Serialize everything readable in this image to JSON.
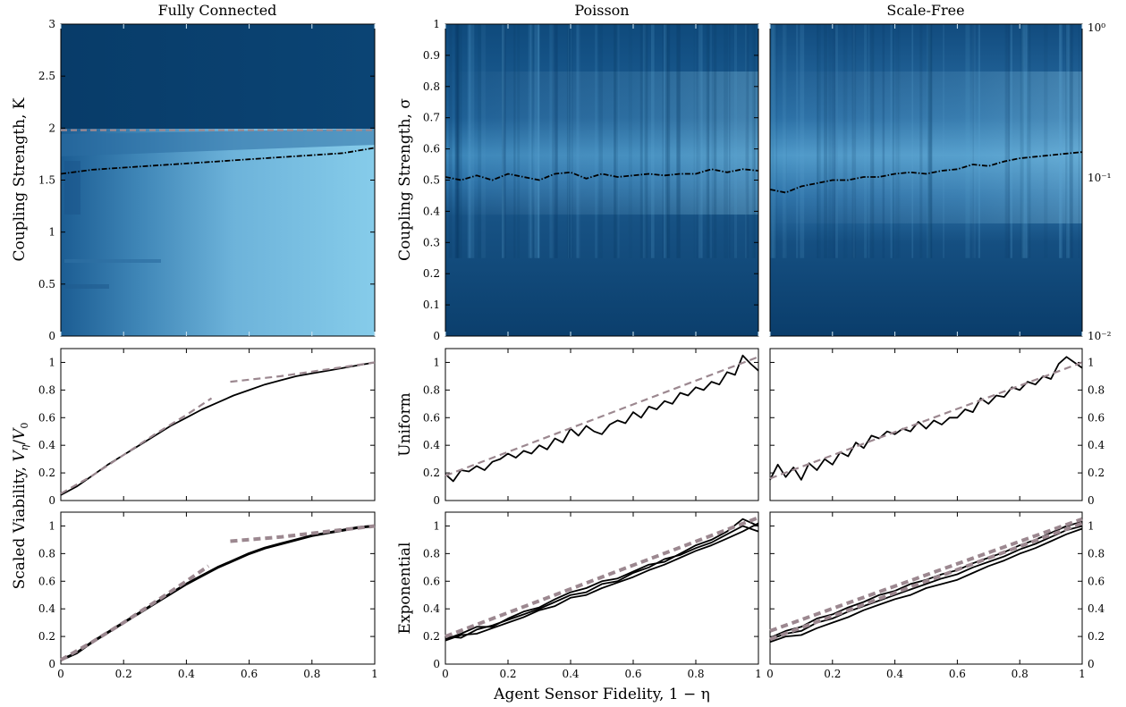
{
  "figure": {
    "x_axis_label": "Agent Sensor Fidelity, 1 − η",
    "colorbar_labels": {
      "top": "10⁰",
      "middle": "10⁻¹",
      "bottom": "10⁻²"
    },
    "colors": {
      "heat_dark": "#0a3f6e",
      "heat_light": "#87cde8",
      "fit_line": "#9c8890",
      "data_line": "#000000"
    }
  },
  "chart_data": [
    {
      "type": "heatmap",
      "id": "heat-fc",
      "title": "Fully Connected",
      "ylabel": "Coupling Strength, K",
      "xlim": [
        0,
        1
      ],
      "ylim": [
        0,
        3
      ],
      "yticks": [
        0,
        0.5,
        1,
        1.5,
        2,
        2.5,
        3
      ],
      "yticklabels": [
        "0",
        "0.5",
        "1",
        "1.5",
        "2",
        "2.5",
        "3"
      ],
      "critical_line": {
        "style": "dash-dot",
        "x": [
          0,
          0.1,
          0.2,
          0.3,
          0.4,
          0.5,
          0.6,
          0.7,
          0.8,
          0.9,
          1.0
        ],
        "y": [
          1.56,
          1.6,
          1.62,
          1.64,
          1.66,
          1.68,
          1.7,
          1.72,
          1.74,
          1.76,
          1.81
        ]
      },
      "reference_line": {
        "style": "dashed",
        "y": 1.98
      }
    },
    {
      "type": "heatmap",
      "id": "heat-poisson",
      "title": "Poisson",
      "ylabel": "Coupling Strength, σ",
      "xlim": [
        0,
        1
      ],
      "ylim": [
        0,
        1
      ],
      "yticks": [
        0,
        0.1,
        0.2,
        0.3,
        0.4,
        0.5,
        0.6,
        0.7,
        0.8,
        0.9,
        1
      ],
      "yticklabels": [
        "0",
        "0.1",
        "0.2",
        "0.3",
        "0.4",
        "0.5",
        "0.6",
        "0.7",
        "0.8",
        "0.9",
        "1"
      ],
      "critical_line": {
        "style": "dash-dot",
        "x": [
          0,
          0.05,
          0.1,
          0.15,
          0.2,
          0.25,
          0.3,
          0.35,
          0.4,
          0.45,
          0.5,
          0.55,
          0.6,
          0.65,
          0.7,
          0.75,
          0.8,
          0.85,
          0.9,
          0.95,
          1.0
        ],
        "y": [
          0.51,
          0.5,
          0.515,
          0.5,
          0.52,
          0.51,
          0.5,
          0.52,
          0.525,
          0.505,
          0.52,
          0.51,
          0.515,
          0.52,
          0.515,
          0.52,
          0.52,
          0.535,
          0.525,
          0.535,
          0.53
        ]
      }
    },
    {
      "type": "heatmap",
      "id": "heat-sf",
      "title": "Scale-Free",
      "xlim": [
        0,
        1
      ],
      "ylim": [
        0,
        1
      ],
      "colorscale": "log",
      "colorbar_range": [
        0.01,
        1
      ],
      "critical_line": {
        "style": "dash-dot",
        "x": [
          0,
          0.05,
          0.1,
          0.15,
          0.2,
          0.25,
          0.3,
          0.35,
          0.4,
          0.45,
          0.5,
          0.55,
          0.6,
          0.65,
          0.7,
          0.75,
          0.8,
          0.85,
          0.9,
          0.95,
          1.0
        ],
        "y": [
          0.47,
          0.46,
          0.48,
          0.49,
          0.5,
          0.5,
          0.51,
          0.51,
          0.52,
          0.525,
          0.52,
          0.53,
          0.535,
          0.55,
          0.545,
          0.56,
          0.57,
          0.575,
          0.58,
          0.585,
          0.59
        ]
      }
    },
    {
      "type": "line",
      "id": "line-fc-uniform",
      "xlim": [
        0,
        1
      ],
      "ylim": [
        0,
        1.1
      ],
      "xticks": [
        0,
        0.2,
        0.4,
        0.6,
        0.8,
        1
      ],
      "yticks": [
        0,
        0.2,
        0.4,
        0.6,
        0.8,
        1
      ],
      "yticklabels": [
        "0",
        "0.2",
        "0.4",
        "0.6",
        "0.8",
        "1"
      ],
      "tick_side": "left",
      "series": [
        {
          "style": "solid",
          "x": [
            0,
            0.05,
            0.1,
            0.15,
            0.2,
            0.25,
            0.3,
            0.35,
            0.4,
            0.45,
            0.5,
            0.55,
            0.6,
            0.65,
            0.7,
            0.75,
            0.8,
            0.85,
            0.9,
            0.95,
            1.0
          ],
          "y": [
            0.04,
            0.1,
            0.18,
            0.26,
            0.33,
            0.4,
            0.47,
            0.54,
            0.6,
            0.66,
            0.71,
            0.76,
            0.8,
            0.84,
            0.87,
            0.9,
            0.92,
            0.94,
            0.96,
            0.98,
            1.0
          ]
        },
        {
          "style": "dashed",
          "x": [
            0,
            0.1,
            0.2,
            0.3,
            0.4,
            0.48
          ],
          "y": [
            0.05,
            0.18,
            0.33,
            0.48,
            0.62,
            0.74
          ]
        },
        {
          "style": "dashed",
          "x": [
            0.54,
            0.7,
            0.85,
            1.0
          ],
          "y": [
            0.86,
            0.9,
            0.95,
            1.0
          ]
        }
      ]
    },
    {
      "type": "line",
      "id": "line-poisson-uniform",
      "ylabel": "Uniform",
      "xlim": [
        0,
        1
      ],
      "ylim": [
        0,
        1.1
      ],
      "xticks": [
        0,
        0.2,
        0.4,
        0.6,
        0.8,
        1
      ],
      "yticks": [
        0,
        0.2,
        0.4,
        0.6,
        0.8,
        1
      ],
      "yticklabels": [
        "0",
        "0.2",
        "0.4",
        "0.6",
        "0.8",
        "1"
      ],
      "tick_side": "left",
      "series": [
        {
          "style": "solid",
          "x": [
            0,
            0.025,
            0.05,
            0.075,
            0.1,
            0.125,
            0.15,
            0.175,
            0.2,
            0.225,
            0.25,
            0.275,
            0.3,
            0.325,
            0.35,
            0.375,
            0.4,
            0.425,
            0.45,
            0.475,
            0.5,
            0.525,
            0.55,
            0.575,
            0.6,
            0.625,
            0.65,
            0.675,
            0.7,
            0.725,
            0.75,
            0.775,
            0.8,
            0.825,
            0.85,
            0.875,
            0.9,
            0.925,
            0.95,
            0.975,
            1.0
          ],
          "y": [
            0.19,
            0.14,
            0.22,
            0.21,
            0.25,
            0.22,
            0.28,
            0.3,
            0.34,
            0.31,
            0.36,
            0.34,
            0.4,
            0.37,
            0.45,
            0.42,
            0.52,
            0.47,
            0.54,
            0.5,
            0.48,
            0.55,
            0.58,
            0.56,
            0.64,
            0.6,
            0.68,
            0.66,
            0.72,
            0.7,
            0.78,
            0.76,
            0.82,
            0.8,
            0.86,
            0.84,
            0.93,
            0.91,
            1.05,
            0.99,
            0.94
          ]
        },
        {
          "style": "dashed",
          "x": [
            0,
            1
          ],
          "y": [
            0.18,
            1.04
          ]
        }
      ]
    },
    {
      "type": "line",
      "id": "line-sf-uniform",
      "xlim": [
        0,
        1
      ],
      "ylim": [
        0,
        1.1
      ],
      "xticks": [
        0,
        0.2,
        0.4,
        0.6,
        0.8,
        1
      ],
      "yticks": [
        0,
        0.2,
        0.4,
        0.6,
        0.8,
        1
      ],
      "yticklabels": [
        "0",
        "0.2",
        "0.4",
        "0.6",
        "0.8",
        "1"
      ],
      "tick_side": "right",
      "series": [
        {
          "style": "solid",
          "x": [
            0,
            0.025,
            0.05,
            0.075,
            0.1,
            0.125,
            0.15,
            0.175,
            0.2,
            0.225,
            0.25,
            0.275,
            0.3,
            0.325,
            0.35,
            0.375,
            0.4,
            0.425,
            0.45,
            0.475,
            0.5,
            0.525,
            0.55,
            0.575,
            0.6,
            0.625,
            0.65,
            0.675,
            0.7,
            0.725,
            0.75,
            0.775,
            0.8,
            0.825,
            0.85,
            0.875,
            0.9,
            0.925,
            0.95,
            0.975,
            1.0
          ],
          "y": [
            0.15,
            0.26,
            0.17,
            0.24,
            0.15,
            0.27,
            0.22,
            0.3,
            0.26,
            0.35,
            0.32,
            0.42,
            0.38,
            0.47,
            0.45,
            0.5,
            0.48,
            0.52,
            0.5,
            0.57,
            0.52,
            0.58,
            0.55,
            0.6,
            0.6,
            0.66,
            0.64,
            0.74,
            0.7,
            0.76,
            0.75,
            0.82,
            0.8,
            0.86,
            0.84,
            0.9,
            0.88,
            0.99,
            1.04,
            1.0,
            0.96
          ]
        },
        {
          "style": "dashed",
          "x": [
            0,
            1
          ],
          "y": [
            0.16,
            1.0
          ]
        }
      ]
    },
    {
      "type": "line",
      "id": "line-fc-exponential",
      "xlim": [
        0,
        1
      ],
      "ylim": [
        0,
        1.1
      ],
      "xticks": [
        0,
        0.2,
        0.4,
        0.6,
        0.8,
        1
      ],
      "xticklabels": [
        "0",
        "0.2",
        "0.4",
        "0.6",
        "0.8",
        "1"
      ],
      "yticks": [
        0,
        0.2,
        0.4,
        0.6,
        0.8,
        1
      ],
      "yticklabels": [
        "0",
        "0.2",
        "0.4",
        "0.6",
        "0.8",
        "1"
      ],
      "tick_side": "left",
      "series": [
        {
          "style": "solid-thick",
          "x": [
            0,
            0.05,
            0.1,
            0.15,
            0.2,
            0.25,
            0.3,
            0.35,
            0.4,
            0.45,
            0.5,
            0.55,
            0.6,
            0.65,
            0.7,
            0.75,
            0.8,
            0.85,
            0.9,
            0.95,
            1.0
          ],
          "y": [
            0.03,
            0.08,
            0.16,
            0.23,
            0.3,
            0.37,
            0.44,
            0.51,
            0.58,
            0.64,
            0.7,
            0.75,
            0.8,
            0.84,
            0.87,
            0.9,
            0.93,
            0.95,
            0.97,
            0.99,
            1.0
          ]
        },
        {
          "style": "dashed-thick",
          "x": [
            0,
            0.1,
            0.2,
            0.3,
            0.4,
            0.47
          ],
          "y": [
            0.03,
            0.16,
            0.3,
            0.45,
            0.6,
            0.71
          ]
        },
        {
          "style": "dashed-thick",
          "x": [
            0.54,
            0.7,
            0.85,
            1.0
          ],
          "y": [
            0.89,
            0.92,
            0.96,
            1.0
          ]
        }
      ]
    },
    {
      "type": "line",
      "id": "line-poisson-exponential",
      "ylabel": "Exponential",
      "xlim": [
        0,
        1
      ],
      "ylim": [
        0,
        1.1
      ],
      "xticks": [
        0,
        0.2,
        0.4,
        0.6,
        0.8,
        1
      ],
      "xticklabels": [
        "0",
        "0.2",
        "0.4",
        "0.6",
        "0.8",
        "1"
      ],
      "yticks": [
        0,
        0.2,
        0.4,
        0.6,
        0.8,
        1
      ],
      "yticklabels": [
        "0",
        "0.2",
        "0.4",
        "0.6",
        "0.8",
        "1"
      ],
      "tick_side": "left",
      "series": [
        {
          "style": "solid",
          "x": [
            0,
            0.05,
            0.1,
            0.15,
            0.2,
            0.25,
            0.3,
            0.35,
            0.4,
            0.45,
            0.5,
            0.55,
            0.6,
            0.65,
            0.7,
            0.75,
            0.8,
            0.85,
            0.9,
            0.95,
            1.0
          ],
          "y": [
            0.2,
            0.19,
            0.25,
            0.28,
            0.32,
            0.36,
            0.4,
            0.45,
            0.5,
            0.52,
            0.58,
            0.6,
            0.66,
            0.7,
            0.76,
            0.79,
            0.84,
            0.88,
            0.94,
            1.0,
            0.96
          ]
        },
        {
          "style": "solid",
          "x": [
            0,
            0.05,
            0.1,
            0.15,
            0.2,
            0.25,
            0.3,
            0.35,
            0.4,
            0.45,
            0.5,
            0.55,
            0.6,
            0.65,
            0.7,
            0.75,
            0.8,
            0.85,
            0.9,
            0.95,
            1.0
          ],
          "y": [
            0.17,
            0.21,
            0.22,
            0.26,
            0.3,
            0.34,
            0.39,
            0.42,
            0.48,
            0.5,
            0.55,
            0.59,
            0.63,
            0.68,
            0.72,
            0.77,
            0.82,
            0.86,
            0.91,
            0.96,
            1.02
          ]
        },
        {
          "style": "solid",
          "x": [
            0,
            0.05,
            0.1,
            0.15,
            0.2,
            0.25,
            0.3,
            0.35,
            0.4,
            0.45,
            0.5,
            0.55,
            0.6,
            0.65,
            0.7,
            0.75,
            0.8,
            0.85,
            0.9,
            0.95,
            1.0
          ],
          "y": [
            0.18,
            0.22,
            0.27,
            0.27,
            0.33,
            0.38,
            0.41,
            0.47,
            0.52,
            0.55,
            0.6,
            0.62,
            0.67,
            0.72,
            0.74,
            0.8,
            0.86,
            0.9,
            0.96,
            1.05,
            1.0
          ]
        },
        {
          "style": "dashed-thick",
          "x": [
            0,
            1
          ],
          "y": [
            0.2,
            1.06
          ]
        }
      ]
    },
    {
      "type": "line",
      "id": "line-sf-exponential",
      "xlim": [
        0,
        1
      ],
      "ylim": [
        0,
        1.1
      ],
      "xticks": [
        0,
        0.2,
        0.4,
        0.6,
        0.8,
        1
      ],
      "xticklabels": [
        "0",
        "0.2",
        "0.4",
        "0.6",
        "0.8",
        "1"
      ],
      "yticks": [
        0,
        0.2,
        0.4,
        0.6,
        0.8,
        1
      ],
      "yticklabels": [
        "0",
        "0.2",
        "0.4",
        "0.6",
        "0.8",
        "1"
      ],
      "tick_side": "right",
      "series": [
        {
          "style": "solid",
          "x": [
            0,
            0.05,
            0.1,
            0.15,
            0.2,
            0.25,
            0.3,
            0.35,
            0.4,
            0.45,
            0.5,
            0.55,
            0.6,
            0.65,
            0.7,
            0.75,
            0.8,
            0.85,
            0.9,
            0.95,
            1.0
          ],
          "y": [
            0.18,
            0.22,
            0.24,
            0.3,
            0.33,
            0.38,
            0.42,
            0.46,
            0.5,
            0.54,
            0.58,
            0.62,
            0.65,
            0.7,
            0.74,
            0.78,
            0.83,
            0.87,
            0.92,
            0.97,
            1.0
          ]
        },
        {
          "style": "solid",
          "x": [
            0,
            0.05,
            0.1,
            0.15,
            0.2,
            0.25,
            0.3,
            0.35,
            0.4,
            0.45,
            0.5,
            0.55,
            0.6,
            0.65,
            0.7,
            0.75,
            0.8,
            0.85,
            0.9,
            0.95,
            1.0
          ],
          "y": [
            0.16,
            0.2,
            0.21,
            0.26,
            0.3,
            0.34,
            0.39,
            0.43,
            0.47,
            0.5,
            0.55,
            0.58,
            0.61,
            0.66,
            0.71,
            0.75,
            0.8,
            0.84,
            0.89,
            0.94,
            0.98
          ]
        },
        {
          "style": "solid",
          "x": [
            0,
            0.05,
            0.1,
            0.15,
            0.2,
            0.25,
            0.3,
            0.35,
            0.4,
            0.45,
            0.5,
            0.55,
            0.6,
            0.65,
            0.7,
            0.75,
            0.8,
            0.85,
            0.9,
            0.95,
            1.0
          ],
          "y": [
            0.19,
            0.24,
            0.27,
            0.33,
            0.36,
            0.41,
            0.45,
            0.5,
            0.53,
            0.58,
            0.61,
            0.65,
            0.68,
            0.73,
            0.77,
            0.81,
            0.86,
            0.9,
            0.95,
            1.0,
            1.03
          ]
        },
        {
          "style": "dashed-thick",
          "x": [
            0,
            1
          ],
          "y": [
            0.24,
            1.05
          ]
        },
        {
          "style": "dashed-thick",
          "x": [
            0,
            1
          ],
          "y": [
            0.18,
            1.02
          ]
        }
      ]
    }
  ]
}
